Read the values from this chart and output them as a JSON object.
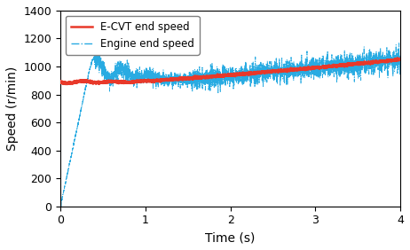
{
  "title": "",
  "xlabel": "Time (s)",
  "ylabel": "Speed (r/min)",
  "xlim": [
    0,
    4
  ],
  "ylim": [
    0,
    1400
  ],
  "yticks": [
    0,
    200,
    400,
    600,
    800,
    1000,
    1200,
    1400
  ],
  "xticks": [
    0,
    1,
    2,
    3,
    4
  ],
  "ecvt_color": "#e8392a",
  "engine_color": "#29abe2",
  "legend_ecvt": "E-CVT end speed",
  "legend_engine": "Engine end speed",
  "seed": 7,
  "n_points": 4000,
  "t_end": 4.0
}
